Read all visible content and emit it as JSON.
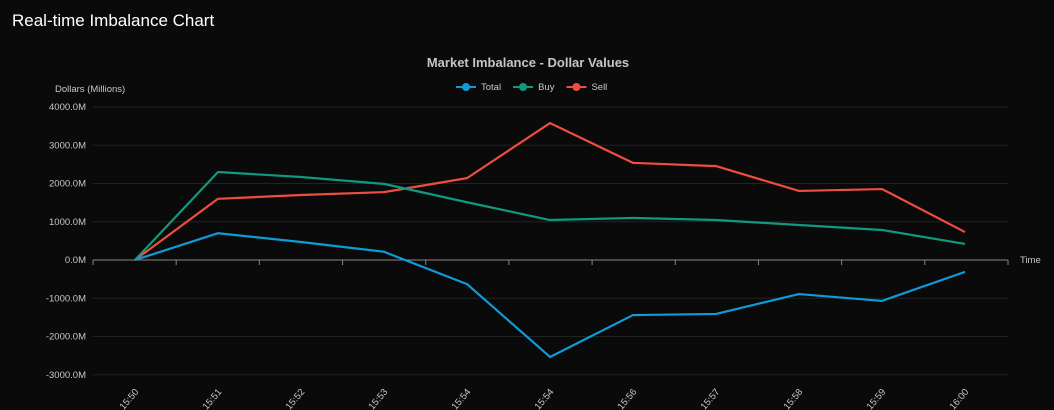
{
  "page_title": "Real-time Imbalance Chart",
  "chart_data": {
    "type": "line",
    "title": "Market Imbalance - Dollar Values",
    "xlabel": "Time",
    "ylabel": "Dollars (Millions)",
    "ylim": [
      -3000,
      4000
    ],
    "yticks": [
      4000,
      3000,
      2000,
      1000,
      0,
      -1000,
      -2000,
      -3000
    ],
    "ytick_labels": [
      "4000.0M",
      "3000.0M",
      "2000.0M",
      "1000.0M",
      "0.0M",
      "-1000.0M",
      "-2000.0M",
      "-3000.0M"
    ],
    "categories": [
      "15:50",
      "15:51",
      "15:52",
      "15:53",
      "15:54",
      "15:54",
      "15:56",
      "15:57",
      "15:58",
      "15:59",
      "16:00"
    ],
    "legend_position": "top-center",
    "grid": true,
    "series": [
      {
        "name": "Total",
        "color": "#0e9bd8",
        "values": [
          0,
          700,
          470,
          215,
          -630,
          -2535,
          -1440,
          -1410,
          -890,
          -1070,
          -310
        ]
      },
      {
        "name": "Buy",
        "color": "#0f9a7f",
        "values": [
          0,
          2300,
          2170,
          1990,
          1510,
          1045,
          1100,
          1045,
          915,
          785,
          420
        ]
      },
      {
        "name": "Sell",
        "color": "#ee4d3f",
        "values": [
          0,
          1600,
          1700,
          1775,
          2140,
          3580,
          2540,
          2455,
          1805,
          1855,
          730
        ]
      }
    ]
  }
}
